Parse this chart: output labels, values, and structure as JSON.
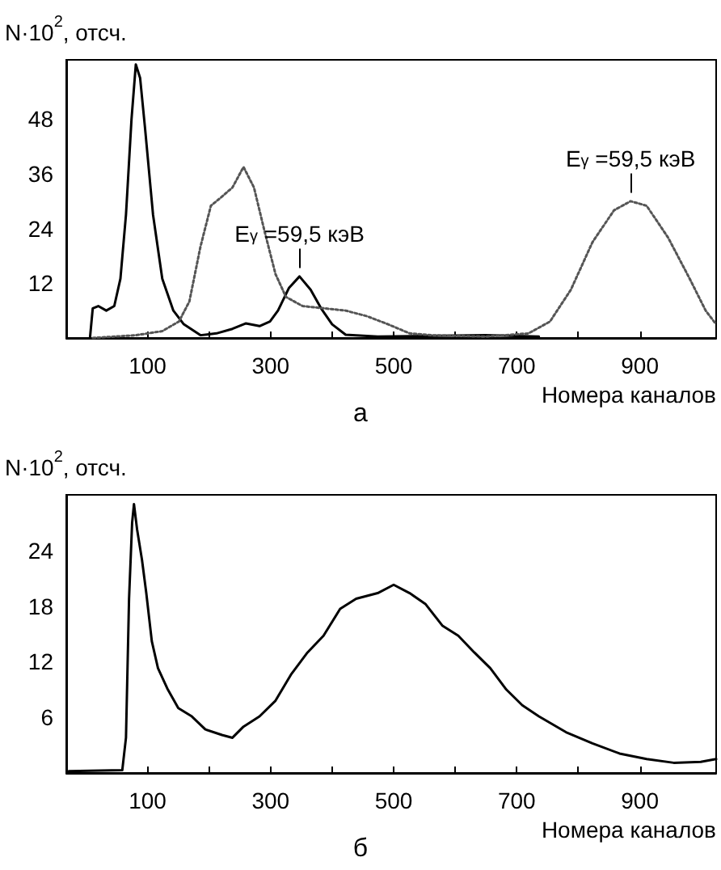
{
  "chart_data": [
    {
      "type": "line",
      "title": "а",
      "xlabel": "Номера каналов",
      "ylabel": "N·10$^{2}$, отсч.",
      "xlim": [
        -32,
        1024
      ],
      "ylim": [
        0,
        61
      ],
      "xticks": [
        100,
        {
          "value": 200,
          "label": null
        },
        300,
        {
          "value": 400,
          "label": null
        },
        500,
        {
          "value": 600,
          "label": null
        },
        700,
        {
          "value": 800,
          "label": null
        },
        900
      ],
      "yticks": [
        12,
        24,
        36,
        48
      ],
      "grid": false,
      "marker": "none",
      "series": [
        {
          "color": "#000000",
          "line_style": "solid",
          "x": [
            6.5,
            11,
            20,
            33,
            46,
            56,
            65,
            74,
            81,
            88,
            96,
            109,
            124,
            142,
            159,
            186,
            212,
            238,
            260,
            282,
            299,
            312,
            330,
            347,
            365,
            382,
            400,
            422,
            474,
            649,
            736
          ],
          "values": [
            0,
            6.5,
            7,
            6,
            7,
            13,
            27,
            48,
            60,
            57,
            46,
            27,
            13,
            6,
            3,
            0.6,
            1,
            2,
            3.2,
            2.6,
            3.6,
            6,
            11,
            13.5,
            10.6,
            6.5,
            3,
            0.7,
            0.3,
            0.6,
            0.3
          ]
        },
        {
          "color": "#555555",
          "line_style": "dotted",
          "x": [
            11,
            81,
            124,
            151,
            168,
            186,
            203,
            221,
            238,
            256,
            273,
            290,
            308,
            325,
            352,
            387,
            422,
            456,
            491,
            526,
            561,
            649,
            719,
            754,
            788,
            823,
            858,
            885,
            911,
            946,
            981,
            1007,
            1024
          ],
          "values": [
            0,
            0.6,
            1.5,
            3.6,
            8,
            20,
            29,
            31,
            33,
            37.5,
            33,
            23.5,
            14,
            9,
            7,
            6.5,
            6,
            4.8,
            3,
            1,
            0.6,
            0.3,
            1,
            3.6,
            10.6,
            21,
            28,
            30,
            29,
            22,
            13,
            6,
            3
          ]
        }
      ],
      "annotations": [
        {
          "text": "E$_{γ}$ =59,5 кэВ",
          "x": 347,
          "y": 13.5
        },
        {
          "text": "E$_{γ}$ =59,5 кэВ",
          "x": 885,
          "y": 30
        }
      ]
    },
    {
      "type": "line",
      "title": "б",
      "xlabel": "Номера каналов",
      "ylabel": "N·10$^{2}$, отсч.",
      "xlim": [
        -32,
        1024
      ],
      "ylim": [
        0,
        30
      ],
      "xticks": [
        100,
        {
          "value": 200,
          "label": null
        },
        300,
        {
          "value": 400,
          "label": null
        },
        500,
        {
          "value": 600,
          "label": null
        },
        700,
        {
          "value": 800,
          "label": null
        },
        900
      ],
      "yticks": [
        6,
        12,
        18,
        24
      ],
      "grid": false,
      "marker": "none",
      "series": [
        {
          "color": "#000000",
          "line_style": "solid",
          "x": [
            -28,
            59,
            65,
            70,
            75,
            78,
            83,
            91,
            98,
            107,
            117,
            133,
            150,
            172,
            194,
            221,
            238,
            256,
            282,
            308,
            334,
            360,
            386,
            413,
            439,
            474,
            500,
            526,
            552,
            579,
            605,
            631,
            657,
            683,
            709,
            736,
            780,
            823,
            867,
            911,
            955,
            999,
            1024
          ],
          "values": [
            0.2,
            0.3,
            3.8,
            18.8,
            27,
            29,
            26.3,
            23,
            19.4,
            14.2,
            11.3,
            9,
            7,
            6.1,
            4.7,
            4.1,
            3.8,
            5,
            6.1,
            7.8,
            10.7,
            13,
            14.8,
            17.7,
            18.8,
            19.4,
            20.3,
            19.4,
            18.2,
            15.9,
            14.8,
            13,
            11.3,
            9,
            7.3,
            6.1,
            4.4,
            3.2,
            2.1,
            1.5,
            1.1,
            1.2,
            1.5
          ]
        }
      ]
    }
  ]
}
